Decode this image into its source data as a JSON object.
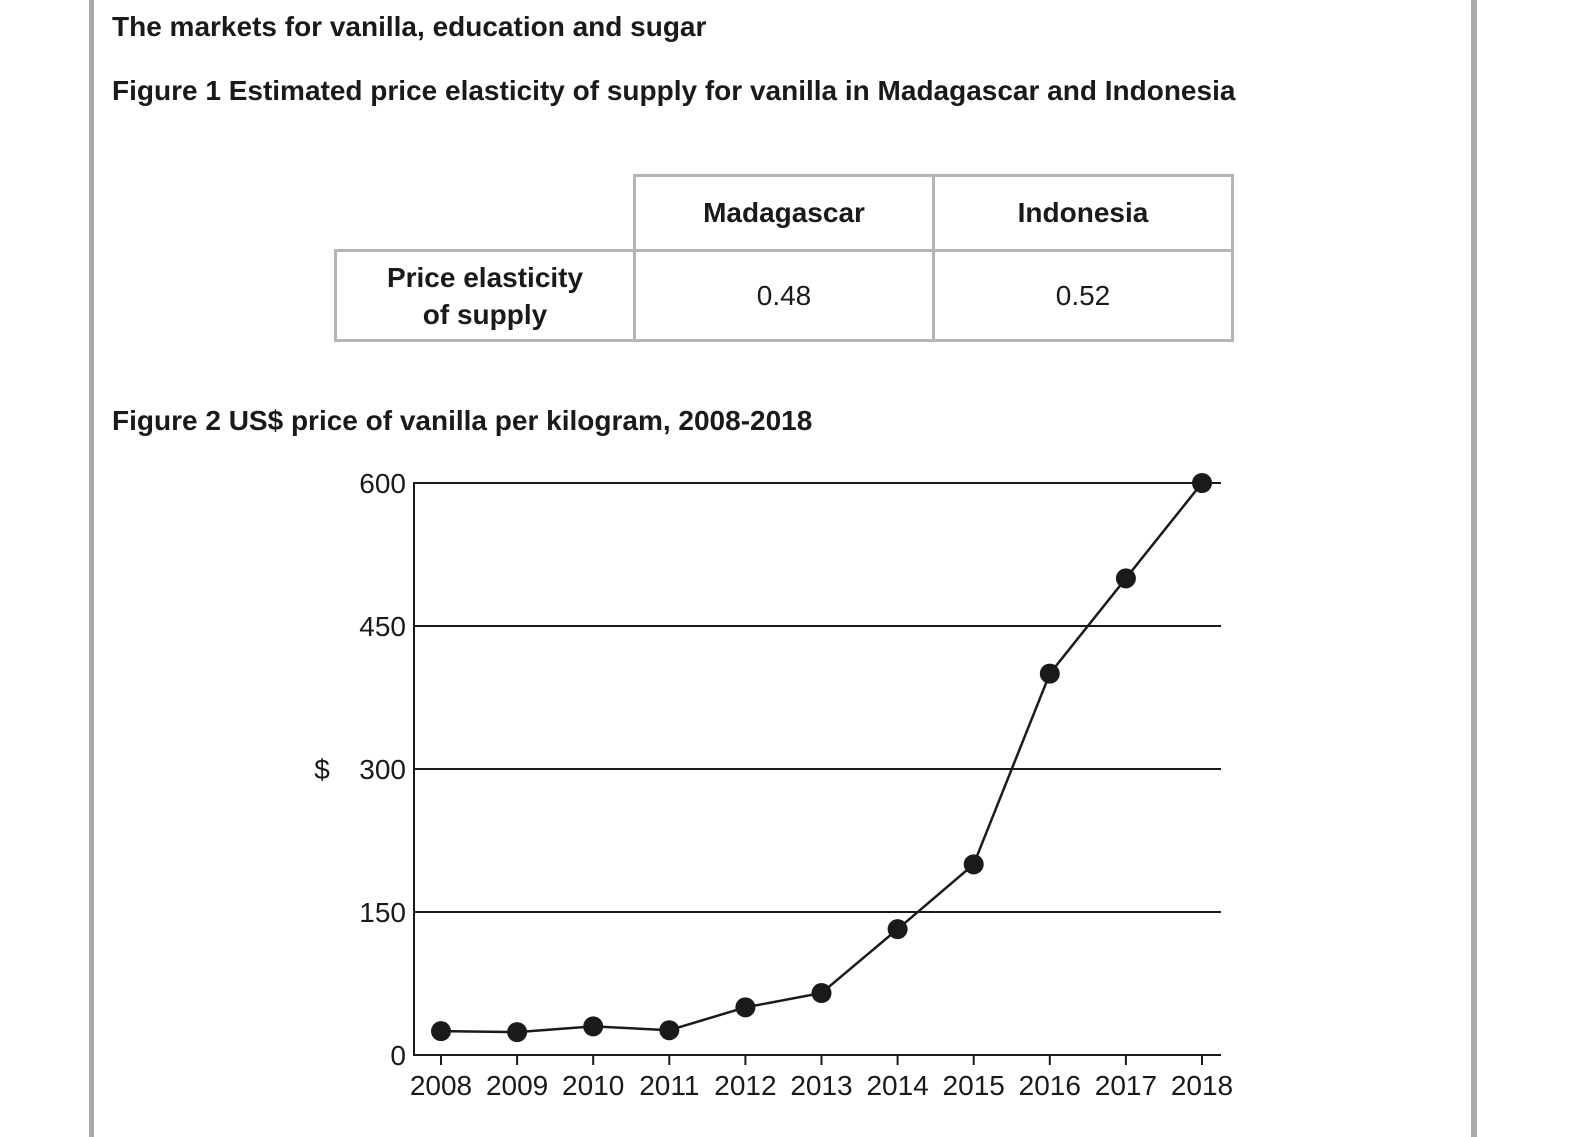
{
  "section_title": "The markets for vanilla, education and sugar",
  "figure1": {
    "title": "Figure 1 Estimated price elasticity of supply for vanilla in Madagascar and Indonesia",
    "columns": [
      "Madagascar",
      "Indonesia"
    ],
    "row_label_line1": "Price elasticity",
    "row_label_line2": "of supply",
    "values": [
      "0.48",
      "0.52"
    ]
  },
  "figure2": {
    "title": "Figure 2 US$ price of vanilla per kilogram, 2008-2018"
  },
  "chart_data": {
    "type": "line",
    "title": "Figure 2 US$ price of vanilla per kilogram, 2008-2018",
    "xlabel": "",
    "ylabel": "$",
    "categories": [
      "2008",
      "2009",
      "2010",
      "2011",
      "2012",
      "2013",
      "2014",
      "2015",
      "2016",
      "2017",
      "2018"
    ],
    "values": [
      25,
      24,
      30,
      26,
      50,
      65,
      132,
      200,
      400,
      500,
      600
    ],
    "ylim": [
      0,
      600
    ],
    "yticks": [
      0,
      150,
      300,
      450,
      600
    ],
    "grid": "horizontal",
    "marker": "filled-circle",
    "colors": {
      "line": "#1a1a1a",
      "grid": "#1a1a1a"
    }
  }
}
